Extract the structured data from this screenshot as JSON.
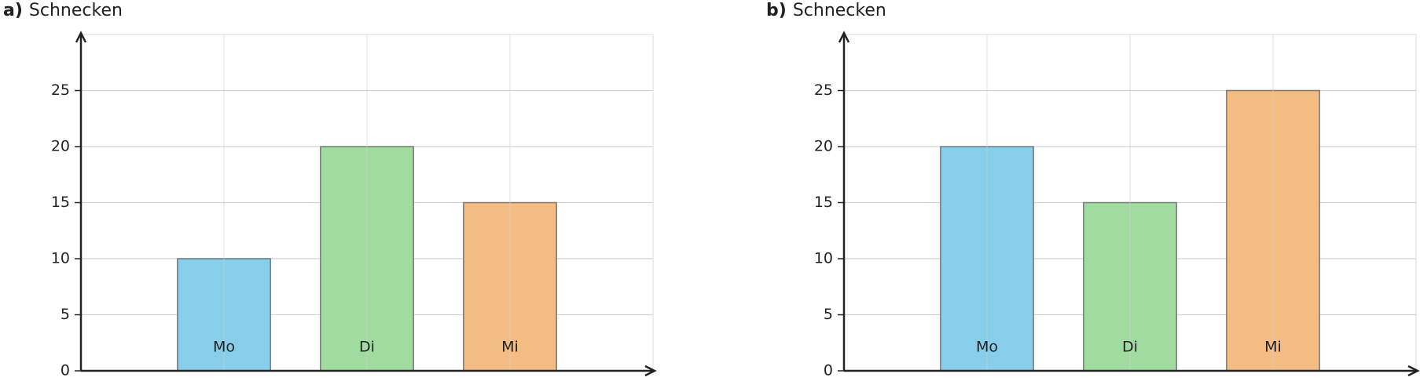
{
  "chart_data": [
    {
      "type": "bar",
      "label": "a)",
      "title": "Schnecken",
      "categories": [
        "Mo",
        "Di",
        "Mi"
      ],
      "values": [
        10,
        20,
        15
      ],
      "colors": [
        "#87ceeb",
        "#a0dca0",
        "#f3bc82"
      ],
      "ylim": [
        0,
        30
      ],
      "yticks": [
        0,
        5,
        10,
        15,
        20,
        25
      ],
      "grid": true
    },
    {
      "type": "bar",
      "label": "b)",
      "title": "Schnecken",
      "categories": [
        "Mo",
        "Di",
        "Mi"
      ],
      "values": [
        20,
        15,
        25
      ],
      "colors": [
        "#87ceeb",
        "#a0dca0",
        "#f3bc82"
      ],
      "ylim": [
        0,
        30
      ],
      "yticks": [
        0,
        5,
        10,
        15,
        20,
        25
      ],
      "grid": true
    }
  ]
}
